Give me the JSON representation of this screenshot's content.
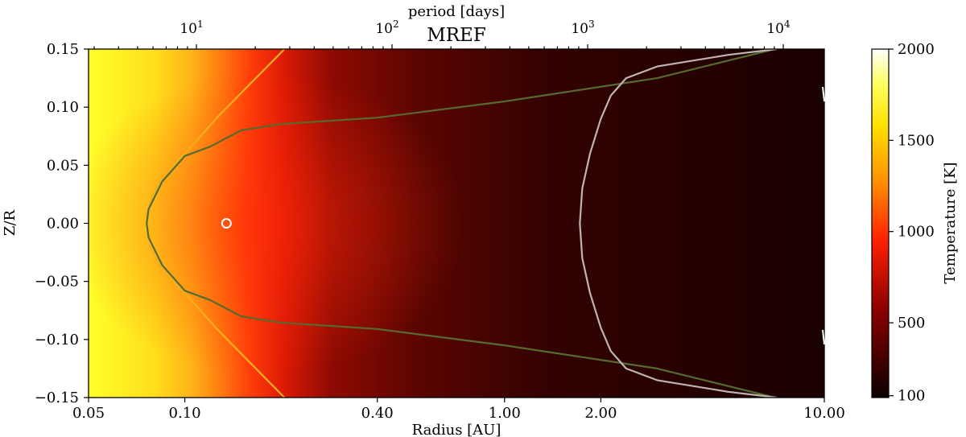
{
  "chart_data": {
    "type": "heatmap",
    "title": "MREF",
    "xlabel": "Radius [AU]",
    "ylabel": "Z/R",
    "top_axis_label": "period [days]",
    "colorbar_label": "Temperature [K]",
    "x_scale": "log",
    "xlim": [
      0.05,
      10.0
    ],
    "ylim": [
      -0.15,
      0.15
    ],
    "x_ticks": [
      {
        "value": 0.05,
        "label": "0.05"
      },
      {
        "value": 0.1,
        "label": "0.10"
      },
      {
        "value": 0.4,
        "label": "0.40"
      },
      {
        "value": 1.0,
        "label": "1.00"
      },
      {
        "value": 2.0,
        "label": "2.00"
      },
      {
        "value": 10.0,
        "label": "10.00"
      }
    ],
    "y_ticks": [
      {
        "value": 0.15,
        "label": "0.15"
      },
      {
        "value": 0.1,
        "label": "0.10"
      },
      {
        "value": 0.05,
        "label": "0.05"
      },
      {
        "value": 0.0,
        "label": "0.00"
      },
      {
        "value": -0.05,
        "label": "−0.05"
      },
      {
        "value": -0.1,
        "label": "−0.10"
      },
      {
        "value": -0.15,
        "label": "−0.15"
      }
    ],
    "top_ticks": [
      {
        "period": 10,
        "base": "10",
        "exp": "1"
      },
      {
        "period": 100,
        "base": "10",
        "exp": "2"
      },
      {
        "period": 1000,
        "base": "10",
        "exp": "3"
      },
      {
        "period": 10000,
        "base": "10",
        "exp": "4"
      }
    ],
    "colorbar": {
      "range": [
        90,
        2000
      ],
      "ticks": [
        {
          "value": 2000,
          "label": "2000"
        },
        {
          "value": 1500,
          "label": "1500"
        },
        {
          "value": 1000,
          "label": "1000"
        },
        {
          "value": 500,
          "label": "500"
        },
        {
          "value": 100,
          "label": "100"
        }
      ],
      "colormap": "hot"
    },
    "contours": [
      {
        "name": "yellow",
        "color": "#f2b01c",
        "points": [
          [
            0.205,
            0.15
          ],
          [
            0.16,
            0.12
          ],
          [
            0.125,
            0.09
          ],
          [
            0.112,
            0.075
          ],
          [
            0.1,
            0.06
          ],
          [
            0.085,
            0.04
          ],
          [
            0.078,
            0.02
          ],
          [
            0.076,
            0.0
          ],
          [
            0.078,
            -0.02
          ],
          [
            0.085,
            -0.04
          ],
          [
            0.1,
            -0.06
          ],
          [
            0.112,
            -0.075
          ],
          [
            0.125,
            -0.09
          ],
          [
            0.16,
            -0.12
          ],
          [
            0.205,
            -0.15
          ]
        ]
      },
      {
        "name": "green",
        "color": "#556b2f",
        "points": [
          [
            7.0,
            0.15
          ],
          [
            3.0,
            0.125
          ],
          [
            1.0,
            0.105
          ],
          [
            0.4,
            0.091
          ],
          [
            0.2,
            0.0855
          ],
          [
            0.15,
            0.08
          ],
          [
            0.12,
            0.066
          ],
          [
            0.1,
            0.058
          ],
          [
            0.085,
            0.036
          ],
          [
            0.077,
            0.012
          ],
          [
            0.076,
            0.0
          ],
          [
            0.077,
            -0.012
          ],
          [
            0.085,
            -0.036
          ],
          [
            0.1,
            -0.058
          ],
          [
            0.12,
            -0.066
          ],
          [
            0.15,
            -0.08
          ],
          [
            0.2,
            -0.0855
          ],
          [
            0.4,
            -0.091
          ],
          [
            1.0,
            -0.105
          ],
          [
            3.0,
            -0.125
          ],
          [
            7.0,
            -0.15
          ]
        ]
      },
      {
        "name": "grey",
        "color": "#bfb3b3",
        "points": [
          [
            7.1,
            0.15
          ],
          [
            5.0,
            0.145
          ],
          [
            3.0,
            0.135
          ],
          [
            2.4,
            0.125
          ],
          [
            2.15,
            0.11
          ],
          [
            2.0,
            0.09
          ],
          [
            1.85,
            0.06
          ],
          [
            1.75,
            0.03
          ],
          [
            1.72,
            0.0
          ],
          [
            1.75,
            -0.03
          ],
          [
            1.85,
            -0.06
          ],
          [
            2.0,
            -0.09
          ],
          [
            2.15,
            -0.11
          ],
          [
            2.4,
            -0.125
          ],
          [
            3.0,
            -0.135
          ],
          [
            5.0,
            -0.145
          ],
          [
            7.1,
            -0.15
          ]
        ]
      }
    ],
    "marker": {
      "x": 0.135,
      "y": 0.0,
      "color": "#ffffff"
    }
  }
}
